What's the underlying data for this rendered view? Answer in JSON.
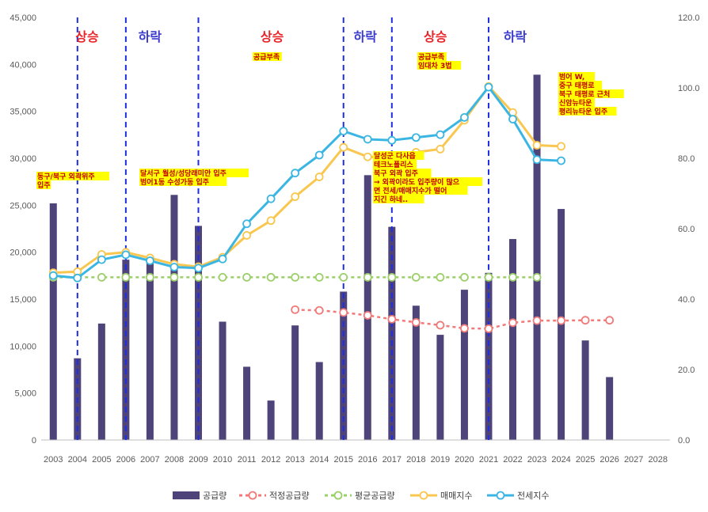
{
  "chart_data": {
    "type": "bar",
    "categories": [
      "2003",
      "2004",
      "2005",
      "2006",
      "2007",
      "2008",
      "2009",
      "2010",
      "2011",
      "2012",
      "2013",
      "2014",
      "2015",
      "2016",
      "2017",
      "2018",
      "2019",
      "2020",
      "2021",
      "2022",
      "2023",
      "2024",
      "2025",
      "2026",
      "2027",
      "2028"
    ],
    "y_left": {
      "ticks": [
        "0",
        "5,000",
        "10,000",
        "15,000",
        "20,000",
        "25,000",
        "30,000",
        "35,000",
        "40,000",
        "45,000"
      ],
      "range": [
        0,
        45000
      ]
    },
    "y_right": {
      "ticks": [
        "0.0",
        "20.0",
        "40.0",
        "60.0",
        "80.0",
        "100.0",
        "120.0"
      ],
      "range": [
        0,
        120
      ]
    },
    "grid": false,
    "legend_position": "bottom",
    "series": [
      {
        "name": "공급량",
        "type": "bar",
        "axis": "left",
        "color": "#4e4479",
        "values": [
          25200,
          8700,
          12400,
          19200,
          19200,
          26100,
          22800,
          12600,
          7800,
          4200,
          12200,
          8300,
          15800,
          28200,
          22700,
          14300,
          11200,
          16000,
          17800,
          21400,
          38900,
          24600,
          10600,
          6700,
          null,
          null
        ]
      },
      {
        "name": "적정공급량",
        "type": "line",
        "axis": "right",
        "color": "#f07a7a",
        "values": [
          null,
          null,
          null,
          null,
          null,
          null,
          null,
          null,
          null,
          null,
          37.0,
          36.8,
          36.2,
          35.4,
          34.3,
          33.4,
          32.6,
          31.7,
          31.6,
          33.3,
          33.9,
          33.9,
          34.0,
          34.0,
          null,
          null
        ]
      },
      {
        "name": "평균공급량",
        "type": "line",
        "axis": "right",
        "color": "#9bcf6a",
        "values": [
          46.2,
          46.2,
          46.2,
          46.2,
          46.2,
          46.2,
          46.2,
          46.2,
          46.2,
          46.2,
          46.2,
          46.2,
          46.2,
          46.2,
          46.2,
          46.2,
          46.2,
          46.2,
          46.2,
          46.2,
          46.2,
          null,
          null,
          null,
          null,
          null
        ]
      },
      {
        "name": "매매지수",
        "type": "line",
        "axis": "right",
        "color": "#f9c74f",
        "values": [
          47.5,
          47.8,
          52.7,
          53.3,
          51.7,
          49.9,
          49.2,
          51.9,
          58.1,
          62.3,
          69.1,
          74.7,
          83.1,
          80.4,
          80.3,
          81.7,
          82.6,
          90.8,
          100.4,
          93.0,
          83.7,
          83.4,
          null,
          null,
          null,
          null
        ]
      },
      {
        "name": "전세지수",
        "type": "line",
        "axis": "right",
        "color": "#3bb6e3",
        "values": [
          46.7,
          46.0,
          51.2,
          52.6,
          50.9,
          49.1,
          48.8,
          51.4,
          61.4,
          68.5,
          75.8,
          80.9,
          87.7,
          85.4,
          85.1,
          85.9,
          86.7,
          91.6,
          100.2,
          91.1,
          79.6,
          79.3,
          null,
          null,
          null,
          null
        ]
      }
    ],
    "phases": [
      "상승",
      "하락",
      "상승",
      "하락",
      "상승",
      "하락"
    ],
    "phase_colors": {
      "up": "#e8262a",
      "down": "#3a3acc"
    },
    "annotations": [
      "동구/북구 외곽위주\n입주",
      "달서구 월성/성당래미안 입주\n범어1동 수성가동 입주",
      "공급부족",
      "공급부족\n임대차 3법",
      "달성군 다사읍\n테크노폴리스\n북구 외곽 입주\n→ 외곽이라도 입주량이 많으\n면 전세/매매지수가 떨어\n지긴 하네..",
      "범어 W,\n중구 태평로\n북구 태평로 근처\n신암뉴타운\n평리뉴타운 입주"
    ]
  }
}
